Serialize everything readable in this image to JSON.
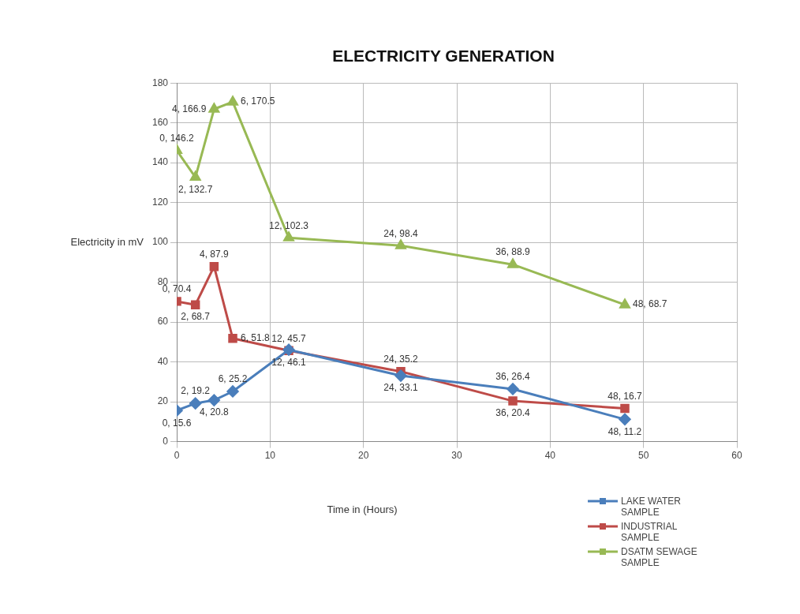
{
  "chart_data": {
    "type": "line",
    "title": "ELECTRICITY GENERATION",
    "xlabel": "Time in (Hours)",
    "ylabel": "Electricity in mV",
    "xlim": [
      0,
      60
    ],
    "xticks": [
      0,
      10,
      20,
      30,
      40,
      50,
      60
    ],
    "ylim": [
      0,
      180
    ],
    "yticks": [
      0,
      20,
      40,
      60,
      80,
      100,
      120,
      140,
      160,
      180
    ],
    "grid": true,
    "legend": "bottom right",
    "series": [
      {
        "name": "LAKE WATER SAMPLE",
        "color": "#4a7ebb",
        "marker": "diamond",
        "x": [
          0,
          2,
          4,
          6,
          12,
          24,
          36,
          48
        ],
        "values": [
          15.6,
          19.2,
          20.8,
          25.2,
          46.1,
          33.1,
          26.4,
          11.2
        ],
        "value_labels": [
          "0, 15.6",
          "2, 19.2",
          "4, 20.8",
          "6, 25.2",
          "12, 46.1",
          "24, 33.1",
          "36, 26.4",
          "48, 11.2"
        ]
      },
      {
        "name": "INDUSTRIAL SAMPLE",
        "color": "#be4b48",
        "marker": "square",
        "x": [
          0,
          2,
          4,
          6,
          12,
          24,
          36,
          48
        ],
        "values": [
          70.4,
          68.7,
          87.9,
          51.8,
          45.7,
          35.2,
          20.4,
          16.7
        ],
        "value_labels": [
          "0, 70.4",
          "2, 68.7",
          "4, 87.9",
          "6, 51.8",
          "12, 45.7",
          "24, 35.2",
          "36, 20.4",
          "48, 16.7"
        ]
      },
      {
        "name": "DSATM SEWAGE SAMPLE",
        "color": "#98b954",
        "marker": "triangle",
        "x": [
          0,
          2,
          4,
          6,
          12,
          24,
          36,
          48
        ],
        "values": [
          146.2,
          132.7,
          166.9,
          170.5,
          102.3,
          98.4,
          88.9,
          68.7
        ],
        "value_labels": [
          "0, 146.2",
          "2, 132.7",
          "4, 166.9",
          "6, 170.5",
          "12, 102.3",
          "24, 98.4",
          "36, 88.9",
          "48, 68.7"
        ]
      }
    ]
  }
}
